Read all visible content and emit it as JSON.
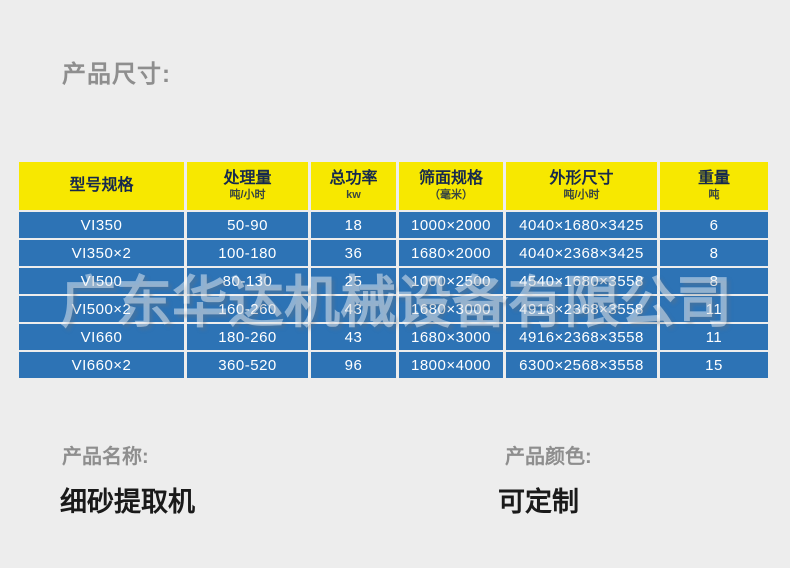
{
  "page": {
    "background_color": "#ededed",
    "section_title": "产品尺寸:"
  },
  "watermark": "广东华达机械设备有限公司",
  "table": {
    "header_bg": "#f7e800",
    "header_text_color": "#16294d",
    "row_bg": "#2d73b5",
    "row_text_color": "#ffffff",
    "columns": [
      {
        "label": "型号规格",
        "sub": ""
      },
      {
        "label": "处理量",
        "sub": "吨/小时"
      },
      {
        "label": "总功率",
        "sub": "kw"
      },
      {
        "label": "筛面规格",
        "sub": "（毫米）"
      },
      {
        "label": "外形尺寸",
        "sub": "吨/小时"
      },
      {
        "label": "重量",
        "sub": "吨"
      }
    ],
    "rows": [
      [
        "VI350",
        "50-90",
        "18",
        "1000×2000",
        "4040×1680×3425",
        "6"
      ],
      [
        "VI350×2",
        "100-180",
        "36",
        "1680×2000",
        "4040×2368×3425",
        "8"
      ],
      [
        "VI500",
        "80-130",
        "25",
        "1000×2500",
        "4540×1680×3558",
        "8"
      ],
      [
        "VI500×2",
        "160-260",
        "43",
        "1680×3000",
        "4916×2368×3558",
        "11"
      ],
      [
        "VI660",
        "180-260",
        "43",
        "1680×3000",
        "4916×2368×3558",
        "11"
      ],
      [
        "VI660×2",
        "360-520",
        "96",
        "1800×4000",
        "6300×2568×3558",
        "15"
      ]
    ]
  },
  "footer": {
    "product_name_label": "产品名称:",
    "product_name_value": "细砂提取机",
    "product_color_label": "产品颜色:",
    "product_color_value": "可定制"
  }
}
